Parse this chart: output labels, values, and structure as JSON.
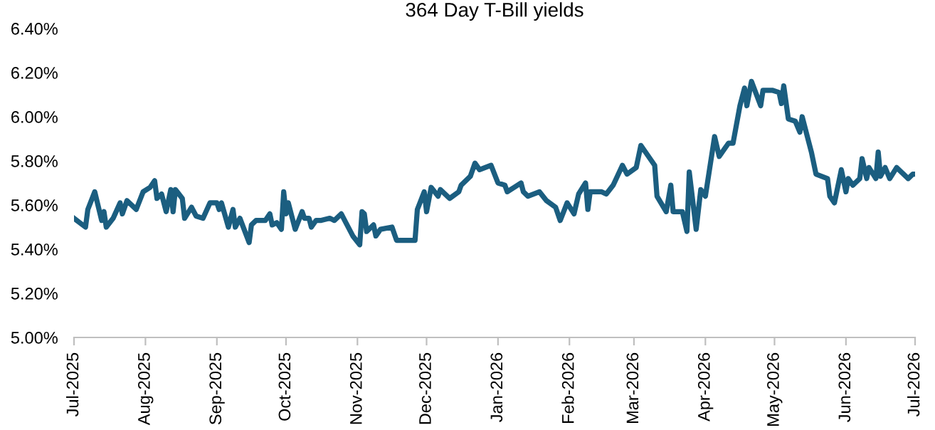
{
  "chart_data": {
    "type": "line",
    "title": "364 Day T-Bill yields",
    "x": [
      "2025-07-01",
      "2025-07-06",
      "2025-07-07",
      "2025-07-10",
      "2025-07-13",
      "2025-07-14",
      "2025-07-15",
      "2025-07-18",
      "2025-07-21",
      "2025-07-22",
      "2025-07-24",
      "2025-07-28",
      "2025-07-31",
      "2025-08-03",
      "2025-08-05",
      "2025-08-06",
      "2025-08-08",
      "2025-08-10",
      "2025-08-12",
      "2025-08-13",
      "2025-08-14",
      "2025-08-17",
      "2025-08-18",
      "2025-08-21",
      "2025-08-23",
      "2025-08-26",
      "2025-08-29",
      "2025-09-01",
      "2025-09-02",
      "2025-09-03",
      "2025-09-06",
      "2025-09-08",
      "2025-09-09",
      "2025-09-11",
      "2025-09-15",
      "2025-09-16",
      "2025-09-18",
      "2025-09-22",
      "2025-09-24",
      "2025-09-25",
      "2025-09-27",
      "2025-09-29",
      "2025-09-30",
      "2025-10-01",
      "2025-10-02",
      "2025-10-05",
      "2025-10-08",
      "2025-10-09",
      "2025-10-11",
      "2025-10-12",
      "2025-10-14",
      "2025-10-16",
      "2025-10-20",
      "2025-10-22",
      "2025-10-25",
      "2025-10-27",
      "2025-10-30",
      "2025-11-02",
      "2025-11-03",
      "2025-11-04",
      "2025-11-05",
      "2025-11-08",
      "2025-11-09",
      "2025-11-11",
      "2025-11-16",
      "2025-11-18",
      "2025-11-23",
      "2025-11-26",
      "2025-11-27",
      "2025-11-30",
      "2025-12-01",
      "2025-12-03",
      "2025-12-06",
      "2025-12-07",
      "2025-12-11",
      "2025-12-15",
      "2025-12-16",
      "2025-12-20",
      "2025-12-22",
      "2025-12-24",
      "2025-12-29",
      "2026-01-01",
      "2026-01-04",
      "2026-01-05",
      "2026-01-08",
      "2026-01-11",
      "2026-01-12",
      "2026-01-14",
      "2026-01-19",
      "2026-01-22",
      "2026-01-26",
      "2026-01-28",
      "2026-01-31",
      "2026-02-03",
      "2026-02-05",
      "2026-02-08",
      "2026-02-09",
      "2026-02-10",
      "2026-02-15",
      "2026-02-17",
      "2026-02-20",
      "2026-02-24",
      "2026-02-26",
      "2026-03-02",
      "2026-03-04",
      "2026-03-10",
      "2026-03-11",
      "2026-03-15",
      "2026-03-17",
      "2026-03-18",
      "2026-03-22",
      "2026-03-24",
      "2026-03-25",
      "2026-03-28",
      "2026-03-30",
      "2026-04-01",
      "2026-04-05",
      "2026-04-07",
      "2026-04-11",
      "2026-04-13",
      "2026-04-16",
      "2026-04-18",
      "2026-04-19",
      "2026-04-21",
      "2026-04-25",
      "2026-04-26",
      "2026-04-30",
      "2026-05-03",
      "2026-05-04",
      "2026-05-05",
      "2026-05-07",
      "2026-05-10",
      "2026-05-12",
      "2026-05-13",
      "2026-05-17",
      "2026-05-19",
      "2026-05-24",
      "2026-05-25",
      "2026-05-27",
      "2026-05-30",
      "2026-06-01",
      "2026-06-02",
      "2026-06-04",
      "2026-06-07",
      "2026-06-08",
      "2026-06-10",
      "2026-06-11",
      "2026-06-14",
      "2026-06-15",
      "2026-06-16",
      "2026-06-18",
      "2026-06-20",
      "2026-06-23",
      "2026-06-28",
      "2026-06-30",
      "2026-07-01"
    ],
    "series": [
      {
        "color": "#1b5e80",
        "values": [
          5.54,
          5.5,
          5.58,
          5.66,
          5.53,
          5.57,
          5.5,
          5.54,
          5.61,
          5.56,
          5.62,
          5.58,
          5.66,
          5.68,
          5.71,
          5.63,
          5.65,
          5.57,
          5.67,
          5.57,
          5.67,
          5.63,
          5.54,
          5.59,
          5.55,
          5.54,
          5.61,
          5.61,
          5.58,
          5.61,
          5.5,
          5.58,
          5.5,
          5.54,
          5.43,
          5.51,
          5.53,
          5.53,
          5.56,
          5.51,
          5.52,
          5.49,
          5.66,
          5.56,
          5.61,
          5.49,
          5.57,
          5.54,
          5.54,
          5.5,
          5.53,
          5.53,
          5.54,
          5.53,
          5.56,
          5.52,
          5.46,
          5.42,
          5.57,
          5.56,
          5.48,
          5.51,
          5.46,
          5.49,
          5.5,
          5.44,
          5.44,
          5.44,
          5.58,
          5.66,
          5.57,
          5.68,
          5.64,
          5.67,
          5.63,
          5.66,
          5.69,
          5.73,
          5.79,
          5.76,
          5.78,
          5.7,
          5.69,
          5.66,
          5.68,
          5.7,
          5.66,
          5.64,
          5.66,
          5.62,
          5.59,
          5.53,
          5.61,
          5.56,
          5.65,
          5.7,
          5.58,
          5.66,
          5.66,
          5.65,
          5.69,
          5.78,
          5.74,
          5.77,
          5.87,
          5.78,
          5.64,
          5.57,
          5.69,
          5.57,
          5.57,
          5.48,
          5.75,
          5.49,
          5.67,
          5.64,
          5.91,
          5.82,
          5.88,
          5.88,
          6.05,
          6.13,
          6.05,
          6.16,
          6.05,
          6.12,
          6.12,
          6.11,
          6.06,
          6.14,
          5.99,
          5.98,
          5.93,
          6.0,
          5.84,
          5.74,
          5.72,
          5.64,
          5.61,
          5.76,
          5.66,
          5.72,
          5.69,
          5.72,
          5.81,
          5.72,
          5.77,
          5.72,
          5.84,
          5.73,
          5.77,
          5.72,
          5.77,
          5.72,
          5.74,
          5.74
        ]
      }
    ],
    "xlim": [
      "2025-07-01",
      "2026-07-01"
    ],
    "xticks": [
      {
        "value": "2025-07-01",
        "label": "Jul-2025"
      },
      {
        "value": "2025-08-01",
        "label": "Aug-2025"
      },
      {
        "value": "2025-09-01",
        "label": "Sep-2025"
      },
      {
        "value": "2025-10-01",
        "label": "Oct-2025"
      },
      {
        "value": "2025-11-01",
        "label": "Nov-2025"
      },
      {
        "value": "2025-12-01",
        "label": "Dec-2025"
      },
      {
        "value": "2026-01-01",
        "label": "Jan-2026"
      },
      {
        "value": "2026-02-01",
        "label": "Feb-2026"
      },
      {
        "value": "2026-03-01",
        "label": "Mar-2026"
      },
      {
        "value": "2026-04-01",
        "label": "Apr-2026"
      },
      {
        "value": "2026-05-01",
        "label": "May-2026"
      },
      {
        "value": "2026-06-01",
        "label": "Jun-2026"
      },
      {
        "value": "2026-07-01",
        "label": "Jul-2026"
      }
    ],
    "ylim": [
      5.0,
      6.4
    ],
    "yticks": [
      {
        "value": 5.0,
        "label": "5.00%"
      },
      {
        "value": 5.2,
        "label": "5.20%"
      },
      {
        "value": 5.4,
        "label": "5.40%"
      },
      {
        "value": 5.6,
        "label": "5.60%"
      },
      {
        "value": 5.8,
        "label": "5.80%"
      },
      {
        "value": 6.0,
        "label": "6.00%"
      },
      {
        "value": 6.2,
        "label": "6.20%"
      },
      {
        "value": 6.4,
        "label": "6.40%"
      }
    ],
    "grid": false,
    "legend": false,
    "line_style": "solid",
    "marker": "none"
  }
}
